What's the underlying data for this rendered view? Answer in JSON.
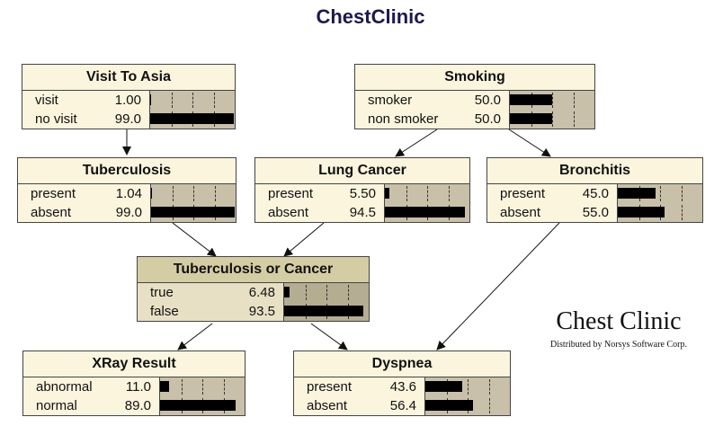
{
  "title": "ChestClinic",
  "brand": {
    "title": "Chest Clinic",
    "subtitle": "Distributed by Norsys Software Corp."
  },
  "nodes": {
    "visit_to_asia": {
      "title": "Visit To Asia",
      "states": [
        {
          "label": "visit",
          "value": "1.00",
          "fraction": 0.01
        },
        {
          "label": "no visit",
          "value": "99.0",
          "fraction": 0.99
        }
      ]
    },
    "smoking": {
      "title": "Smoking",
      "states": [
        {
          "label": "smoker",
          "value": "50.0",
          "fraction": 0.5
        },
        {
          "label": "non smoker",
          "value": "50.0",
          "fraction": 0.5
        }
      ]
    },
    "tuberculosis": {
      "title": "Tuberculosis",
      "states": [
        {
          "label": "present",
          "value": "1.04",
          "fraction": 0.0104
        },
        {
          "label": "absent",
          "value": "99.0",
          "fraction": 0.99
        }
      ]
    },
    "lung_cancer": {
      "title": "Lung Cancer",
      "states": [
        {
          "label": "present",
          "value": "5.50",
          "fraction": 0.055
        },
        {
          "label": "absent",
          "value": "94.5",
          "fraction": 0.945
        }
      ]
    },
    "bronchitis": {
      "title": "Bronchitis",
      "states": [
        {
          "label": "present",
          "value": "45.0",
          "fraction": 0.45
        },
        {
          "label": "absent",
          "value": "55.0",
          "fraction": 0.55
        }
      ]
    },
    "tb_or_cancer": {
      "title": "Tuberculosis or Cancer",
      "states": [
        {
          "label": "true",
          "value": "6.48",
          "fraction": 0.0648
        },
        {
          "label": "false",
          "value": "93.5",
          "fraction": 0.935
        }
      ]
    },
    "xray_result": {
      "title": "XRay Result",
      "states": [
        {
          "label": "abnormal",
          "value": "11.0",
          "fraction": 0.11
        },
        {
          "label": "normal",
          "value": "89.0",
          "fraction": 0.89
        }
      ]
    },
    "dyspnea": {
      "title": "Dyspnea",
      "states": [
        {
          "label": "present",
          "value": "43.6",
          "fraction": 0.436
        },
        {
          "label": "absent",
          "value": "56.4",
          "fraction": 0.564
        }
      ]
    }
  }
}
